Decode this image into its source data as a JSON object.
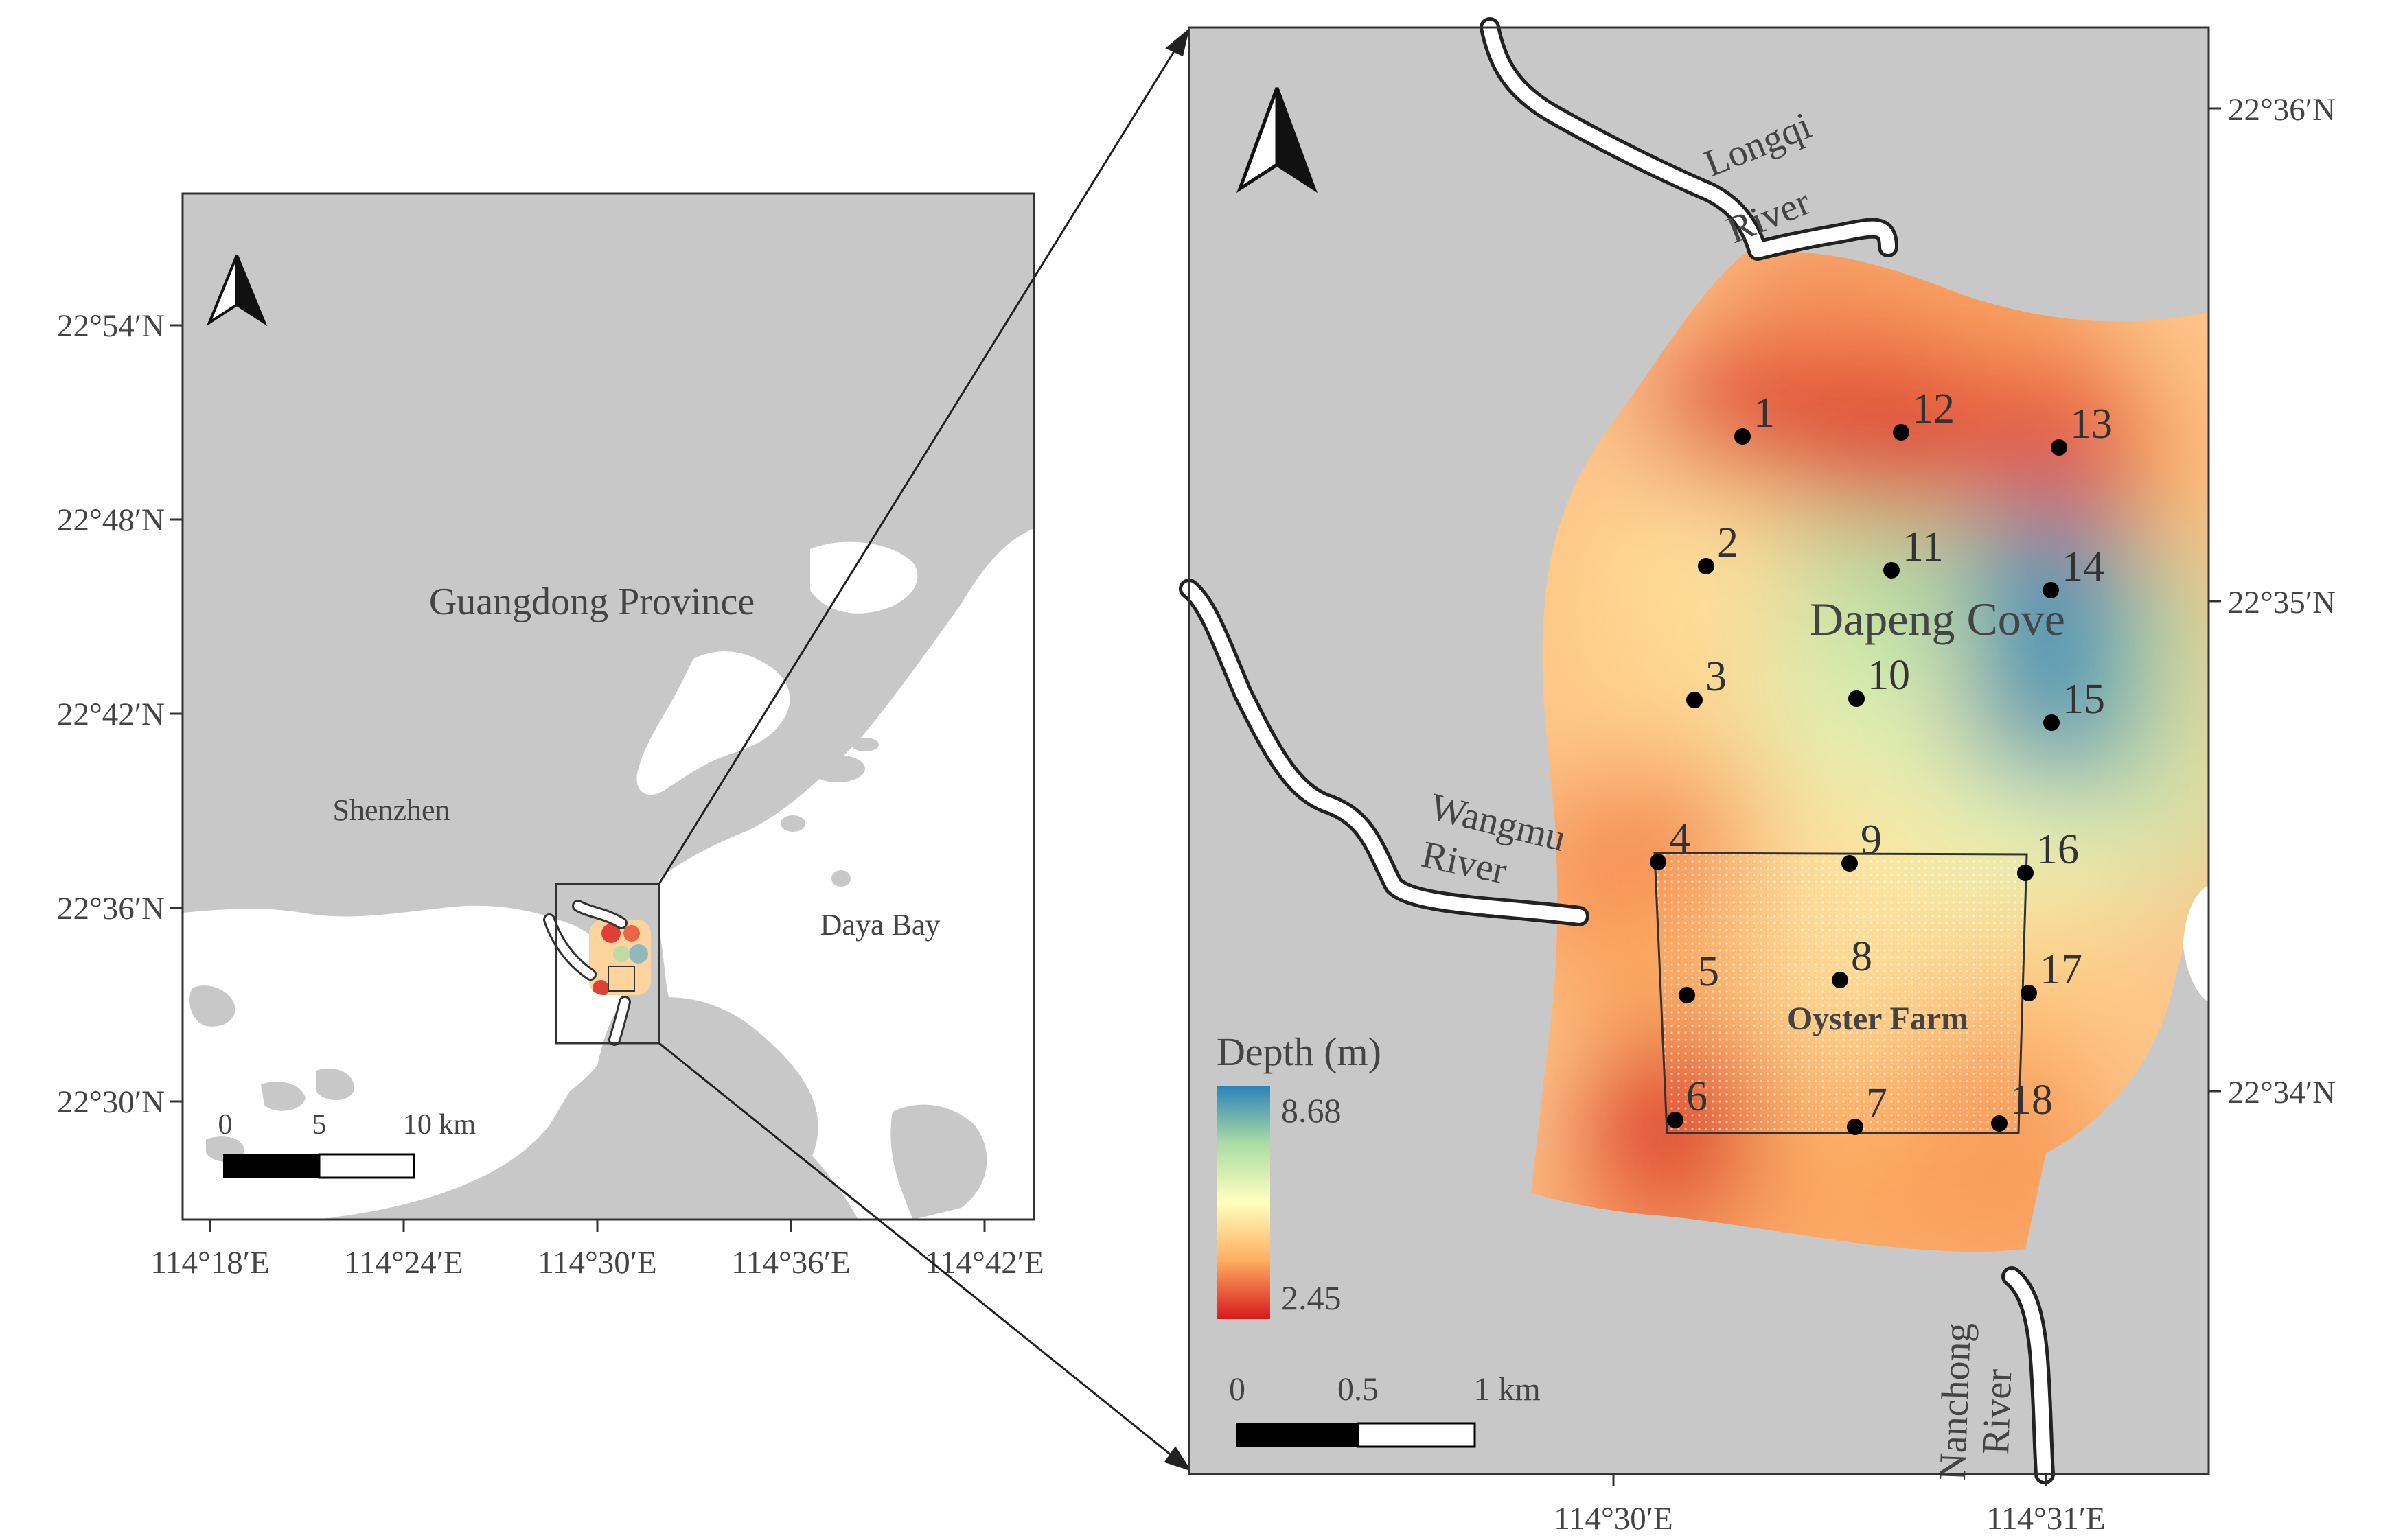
{
  "overview_map": {
    "x_ticks": [
      "114°18′E",
      "114°24′E",
      "114°30′E",
      "114°36′E",
      "114°42′E"
    ],
    "y_ticks": [
      "22°54′N",
      "22°48′N",
      "22°42′N",
      "22°36′N",
      "22°30′N"
    ],
    "labels": {
      "province": "Guangdong Province",
      "city": "Shenzhen",
      "bay": "Daya Bay"
    },
    "scale_bar": {
      "labels": [
        "0",
        "5",
        "10 km"
      ]
    }
  },
  "detail_map": {
    "x_ticks": [
      "114°30′E",
      "114°31′E"
    ],
    "y_ticks": [
      "22°36′N",
      "22°35′N",
      "22°34′N"
    ],
    "labels": {
      "longqi_1": "Longqi",
      "longqi_2": "River",
      "wangmu_1": "Wangmu",
      "wangmu_2": "River",
      "nanchong_1": "Nanchong",
      "nanchong_2": "River",
      "cove": "Dapeng Cove",
      "farm": "Oyster Farm"
    },
    "legend": {
      "title": "Depth (m)",
      "max": "8.68",
      "min": "2.45"
    },
    "scale_bar": {
      "labels": [
        "0",
        "0.5",
        "1 km"
      ]
    },
    "stations": [
      {
        "id": "1",
        "depth": 2.5
      },
      {
        "id": "2",
        "depth": 5.0
      },
      {
        "id": "3",
        "depth": 4.8
      },
      {
        "id": "4",
        "depth": 3.6
      },
      {
        "id": "5",
        "depth": 4.0
      },
      {
        "id": "6",
        "depth": 2.5
      },
      {
        "id": "7",
        "depth": 4.0
      },
      {
        "id": "8",
        "depth": 4.8
      },
      {
        "id": "9",
        "depth": 5.0
      },
      {
        "id": "10",
        "depth": 6.2
      },
      {
        "id": "11",
        "depth": 7.0
      },
      {
        "id": "12",
        "depth": 2.7
      },
      {
        "id": "13",
        "depth": 2.9
      },
      {
        "id": "14",
        "depth": 8.6
      },
      {
        "id": "15",
        "depth": 8.5
      },
      {
        "id": "16",
        "depth": 6.0
      },
      {
        "id": "17",
        "depth": 4.6
      },
      {
        "id": "18",
        "depth": 3.8
      }
    ],
    "colors": {
      "shallow": "#d7191c",
      "mid": "#ffffbf",
      "deep": "#2b83ba",
      "land": "#c8c8c8",
      "water": "#ffffff"
    }
  }
}
